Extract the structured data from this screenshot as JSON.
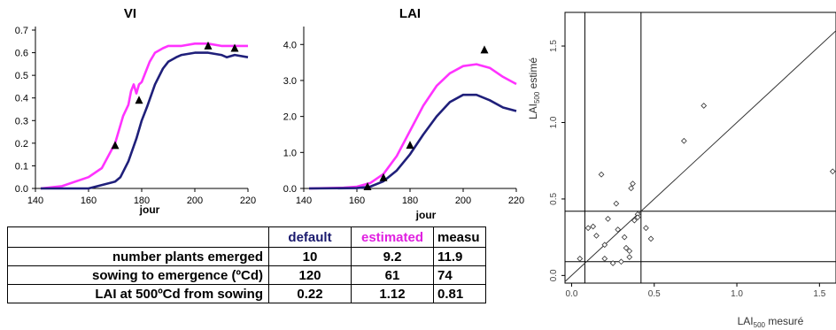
{
  "chart_data": [
    {
      "type": "line",
      "title": "VI",
      "xlabel": "jour",
      "x_ticks": [
        140,
        160,
        180,
        200,
        220
      ],
      "y_ticks": [
        "0.0",
        "0.1",
        "0.2",
        "0.3",
        "0.4",
        "0.5",
        "0.6",
        "0.7"
      ],
      "xlim": [
        140,
        220
      ],
      "ylim": [
        0,
        0.7
      ],
      "grid": false,
      "series": [
        {
          "color": "#ff33ff",
          "style": "line",
          "x": [
            142,
            150,
            160,
            165,
            170,
            173,
            175,
            176,
            177,
            178,
            179,
            180,
            181,
            183,
            185,
            188,
            190,
            195,
            200,
            205,
            210,
            215,
            220
          ],
          "y": [
            0.0,
            0.01,
            0.05,
            0.09,
            0.2,
            0.32,
            0.37,
            0.43,
            0.46,
            0.42,
            0.46,
            0.47,
            0.5,
            0.56,
            0.6,
            0.62,
            0.63,
            0.63,
            0.64,
            0.64,
            0.63,
            0.63,
            0.63
          ]
        },
        {
          "color": "#1f1f7a",
          "style": "line",
          "x": [
            142,
            160,
            170,
            172,
            175,
            178,
            180,
            182,
            185,
            188,
            190,
            193,
            195,
            200,
            205,
            210,
            212,
            215,
            220
          ],
          "y": [
            0.0,
            0.0,
            0.03,
            0.05,
            0.12,
            0.22,
            0.3,
            0.36,
            0.46,
            0.53,
            0.56,
            0.58,
            0.59,
            0.6,
            0.6,
            0.59,
            0.58,
            0.59,
            0.58
          ]
        },
        {
          "color": "#000000",
          "style": "triangle",
          "x": [
            170,
            179,
            205,
            215
          ],
          "y": [
            0.19,
            0.39,
            0.63,
            0.62
          ]
        }
      ]
    },
    {
      "type": "line",
      "title": "LAI",
      "xlabel": "jour",
      "x_ticks": [
        140,
        160,
        180,
        200,
        220
      ],
      "y_ticks": [
        "0.0",
        "1.0",
        "2.0",
        "3.0",
        "4.0"
      ],
      "xlim": [
        140,
        220
      ],
      "ylim": [
        0,
        4.4
      ],
      "grid": false,
      "series": [
        {
          "color": "#ff33ff",
          "style": "line",
          "x": [
            142,
            155,
            160,
            165,
            170,
            175,
            180,
            185,
            190,
            195,
            200,
            205,
            210,
            215,
            220
          ],
          "y": [
            0.0,
            0.02,
            0.05,
            0.15,
            0.4,
            0.9,
            1.6,
            2.3,
            2.85,
            3.2,
            3.4,
            3.45,
            3.35,
            3.1,
            2.9
          ]
        },
        {
          "color": "#1f1f7a",
          "style": "line",
          "x": [
            142,
            160,
            165,
            170,
            175,
            180,
            185,
            190,
            195,
            200,
            205,
            210,
            215,
            220
          ],
          "y": [
            0.0,
            0.01,
            0.05,
            0.2,
            0.5,
            0.95,
            1.5,
            2.0,
            2.4,
            2.6,
            2.6,
            2.45,
            2.25,
            2.15
          ]
        },
        {
          "color": "#000000",
          "style": "triangle",
          "x": [
            164,
            170,
            180,
            208
          ],
          "y": [
            0.05,
            0.3,
            1.2,
            3.85
          ]
        }
      ]
    },
    {
      "type": "scatter",
      "xlabel_main": "LAI",
      "xlabel_sub": "500",
      "xlabel_rest": " mesuré",
      "ylabel_main": "LAI",
      "ylabel_sub": "500",
      "ylabel_rest": " estimé",
      "x_ticks": [
        "0.0",
        "0.5",
        "1.0",
        "1.5"
      ],
      "y_ticks": [
        "0.0",
        "0.5",
        "1.0",
        "1.5"
      ],
      "xlim": [
        -0.04,
        1.6
      ],
      "ylim": [
        -0.05,
        1.72
      ],
      "vlines": [
        0.08,
        0.42
      ],
      "hlines": [
        0.09,
        0.42
      ],
      "diagonal": true,
      "points": {
        "x": [
          0.05,
          0.1,
          0.13,
          0.15,
          0.18,
          0.2,
          0.22,
          0.25,
          0.27,
          0.3,
          0.32,
          0.35,
          0.36,
          0.37,
          0.38,
          0.4,
          0.4,
          0.45,
          0.48,
          0.68,
          0.8,
          1.58,
          0.2,
          0.28,
          0.33,
          0.35
        ],
        "y": [
          0.11,
          0.31,
          0.32,
          0.26,
          0.66,
          0.11,
          0.37,
          0.08,
          0.47,
          0.09,
          0.25,
          0.12,
          0.57,
          0.6,
          0.36,
          0.4,
          0.38,
          0.31,
          0.24,
          0.88,
          1.11,
          0.68,
          0.2,
          0.3,
          0.18,
          0.16
        ]
      }
    }
  ],
  "table": {
    "headers": [
      "",
      "default",
      "estimated",
      "measu"
    ],
    "rows": [
      {
        "label": "number plants emerged",
        "default": "10",
        "estimated": "9.2",
        "measured": "11.9"
      },
      {
        "label": "sowing to emergence (ºCd)",
        "default": "120",
        "estimated": "61",
        "measured": "74"
      },
      {
        "label": "LAI at 500ºCd from sowing",
        "default": "0.22",
        "estimated": "1.12",
        "measured": "0.81"
      }
    ]
  }
}
